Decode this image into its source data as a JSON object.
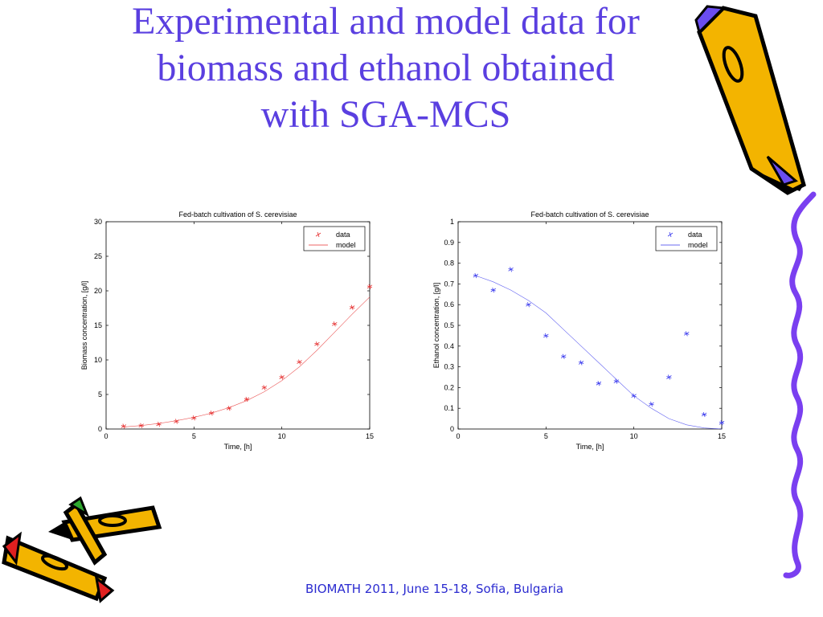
{
  "title_line1": "Experimental and model data for",
  "title_line2": "biomass and ethanol obtained",
  "title_line3": "with SGA-MCS",
  "footer": "BIOMATH 2011, June 15-18, Sofia, Bulgaria",
  "colors": {
    "title": "#5a3fe0",
    "footer": "#2b2bd0",
    "biomass": "#e63030",
    "ethanol": "#3a3aee",
    "squiggle": "#7a3ff0"
  },
  "chart_data": [
    {
      "type": "line",
      "title": "Fed-batch cultivation of S. cerevisiae",
      "xlabel": "Time, [h]",
      "ylabel": "Biomass concentration, [g/l]",
      "xlim": [
        0,
        15
      ],
      "ylim": [
        0,
        30
      ],
      "xticks": [
        0,
        5,
        10,
        15
      ],
      "yticks": [
        0,
        5,
        10,
        15,
        20,
        25,
        30
      ],
      "legend_position": "top-right",
      "grid": false,
      "series": [
        {
          "name": "data",
          "style": "markers",
          "x": [
            1,
            2,
            3,
            4,
            5,
            6,
            7,
            8,
            9,
            10,
            11,
            12,
            13,
            14,
            15
          ],
          "y": [
            0.4,
            0.5,
            0.7,
            1.1,
            1.6,
            2.3,
            3.0,
            4.3,
            6.0,
            7.5,
            9.7,
            12.3,
            15.2,
            17.6,
            20.6
          ]
        },
        {
          "name": "model",
          "style": "line",
          "x": [
            1,
            2,
            3,
            4,
            5,
            6,
            7,
            8,
            9,
            10,
            11,
            12,
            13,
            14,
            15
          ],
          "y": [
            0.3,
            0.5,
            0.8,
            1.2,
            1.7,
            2.3,
            3.1,
            4.1,
            5.4,
            7.0,
            9.0,
            11.4,
            14.0,
            16.6,
            19.1
          ]
        }
      ]
    },
    {
      "type": "line",
      "title": "Fed-batch cultivation of S. cerevisiae",
      "xlabel": "Time, [h]",
      "ylabel": "Ethanol concentration, [g/l]",
      "xlim": [
        0,
        15
      ],
      "ylim": [
        0,
        1
      ],
      "xticks": [
        0,
        5,
        10,
        15
      ],
      "yticks": [
        0,
        0.1,
        0.2,
        0.3,
        0.4,
        0.5,
        0.6,
        0.7,
        0.8,
        0.9,
        1
      ],
      "legend_position": "top-right",
      "grid": false,
      "series": [
        {
          "name": "data",
          "style": "markers",
          "x": [
            1,
            2,
            3,
            4,
            5,
            6,
            7,
            8,
            9,
            10,
            11,
            12,
            13,
            14,
            15
          ],
          "y": [
            0.74,
            0.67,
            0.77,
            0.6,
            0.45,
            0.35,
            0.32,
            0.22,
            0.23,
            0.16,
            0.12,
            0.25,
            0.46,
            0.07,
            0.03
          ]
        },
        {
          "name": "model",
          "style": "line",
          "x": [
            1,
            2,
            3,
            4,
            5,
            6,
            7,
            8,
            9,
            10,
            11,
            12,
            13,
            14,
            15
          ],
          "y": [
            0.74,
            0.71,
            0.67,
            0.62,
            0.56,
            0.48,
            0.4,
            0.32,
            0.24,
            0.16,
            0.1,
            0.05,
            0.02,
            0.005,
            0.0
          ]
        }
      ]
    }
  ]
}
